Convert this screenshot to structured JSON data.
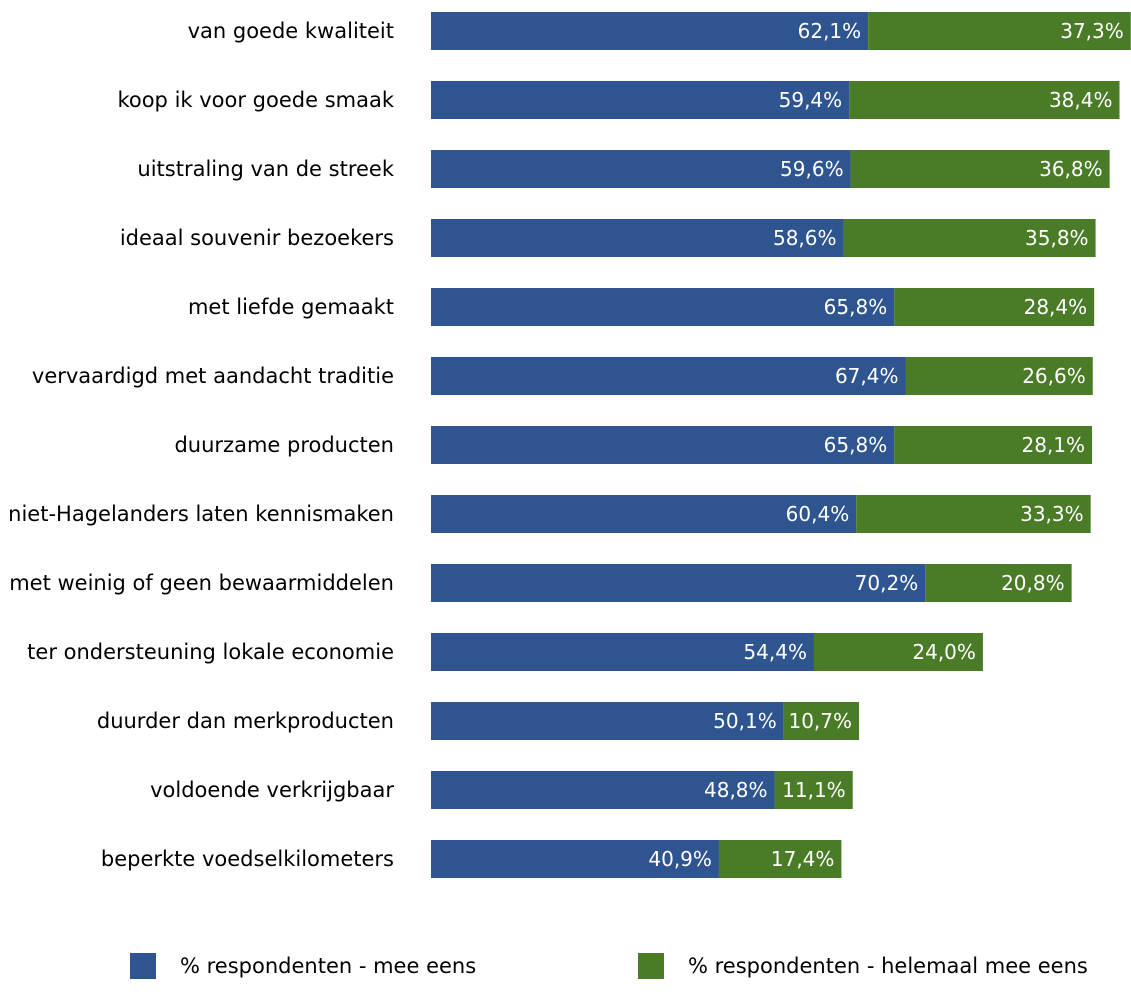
{
  "chart_data": {
    "type": "bar",
    "orientation": "horizontal",
    "stacked": true,
    "title": "",
    "xlabel": "",
    "ylabel": "",
    "xlim": [
      0,
      100
    ],
    "grid": false,
    "legend_position": "bottom",
    "categories": [
      "van goede kwaliteit",
      "koop ik voor goede smaak",
      "uitstraling van de streek",
      "ideaal souvenir bezoekers",
      "met liefde gemaakt",
      "vervaardigd met aandacht traditie",
      "duurzame producten",
      "niet-Hagelanders laten kennismaken",
      "met weinig of geen bewaarmiddelen",
      "ter ondersteuning lokale economie",
      "duurder dan merkproducten",
      "voldoende verkrijgbaar",
      "beperkte voedselkilometers"
    ],
    "series": [
      {
        "name": "% respondenten - mee eens",
        "color": "#2e5590",
        "values": [
          62.1,
          59.4,
          59.6,
          58.6,
          65.8,
          67.4,
          65.8,
          60.4,
          70.2,
          54.4,
          50.1,
          48.8,
          40.9
        ],
        "labels": [
          "62,1%",
          "59,4%",
          "59,6%",
          "58,6%",
          "65,8%",
          "67,4%",
          "65,8%",
          "60,4%",
          "70,2%",
          "54,4%",
          "50,1%",
          "48,8%",
          "40,9%"
        ]
      },
      {
        "name": "% respondenten - helemaal mee eens",
        "color": "#4a7c28",
        "values": [
          37.3,
          38.4,
          36.8,
          35.8,
          28.4,
          26.6,
          28.1,
          33.3,
          20.8,
          24.0,
          10.7,
          11.1,
          17.4
        ],
        "labels": [
          "37,3%",
          "38,4%",
          "36,8%",
          "35,8%",
          "28,4%",
          "26,6%",
          "28,1%",
          "33,3%",
          "20,8%",
          "24,0%",
          "10,7%",
          "11,1%",
          "17,4%"
        ]
      }
    ]
  }
}
